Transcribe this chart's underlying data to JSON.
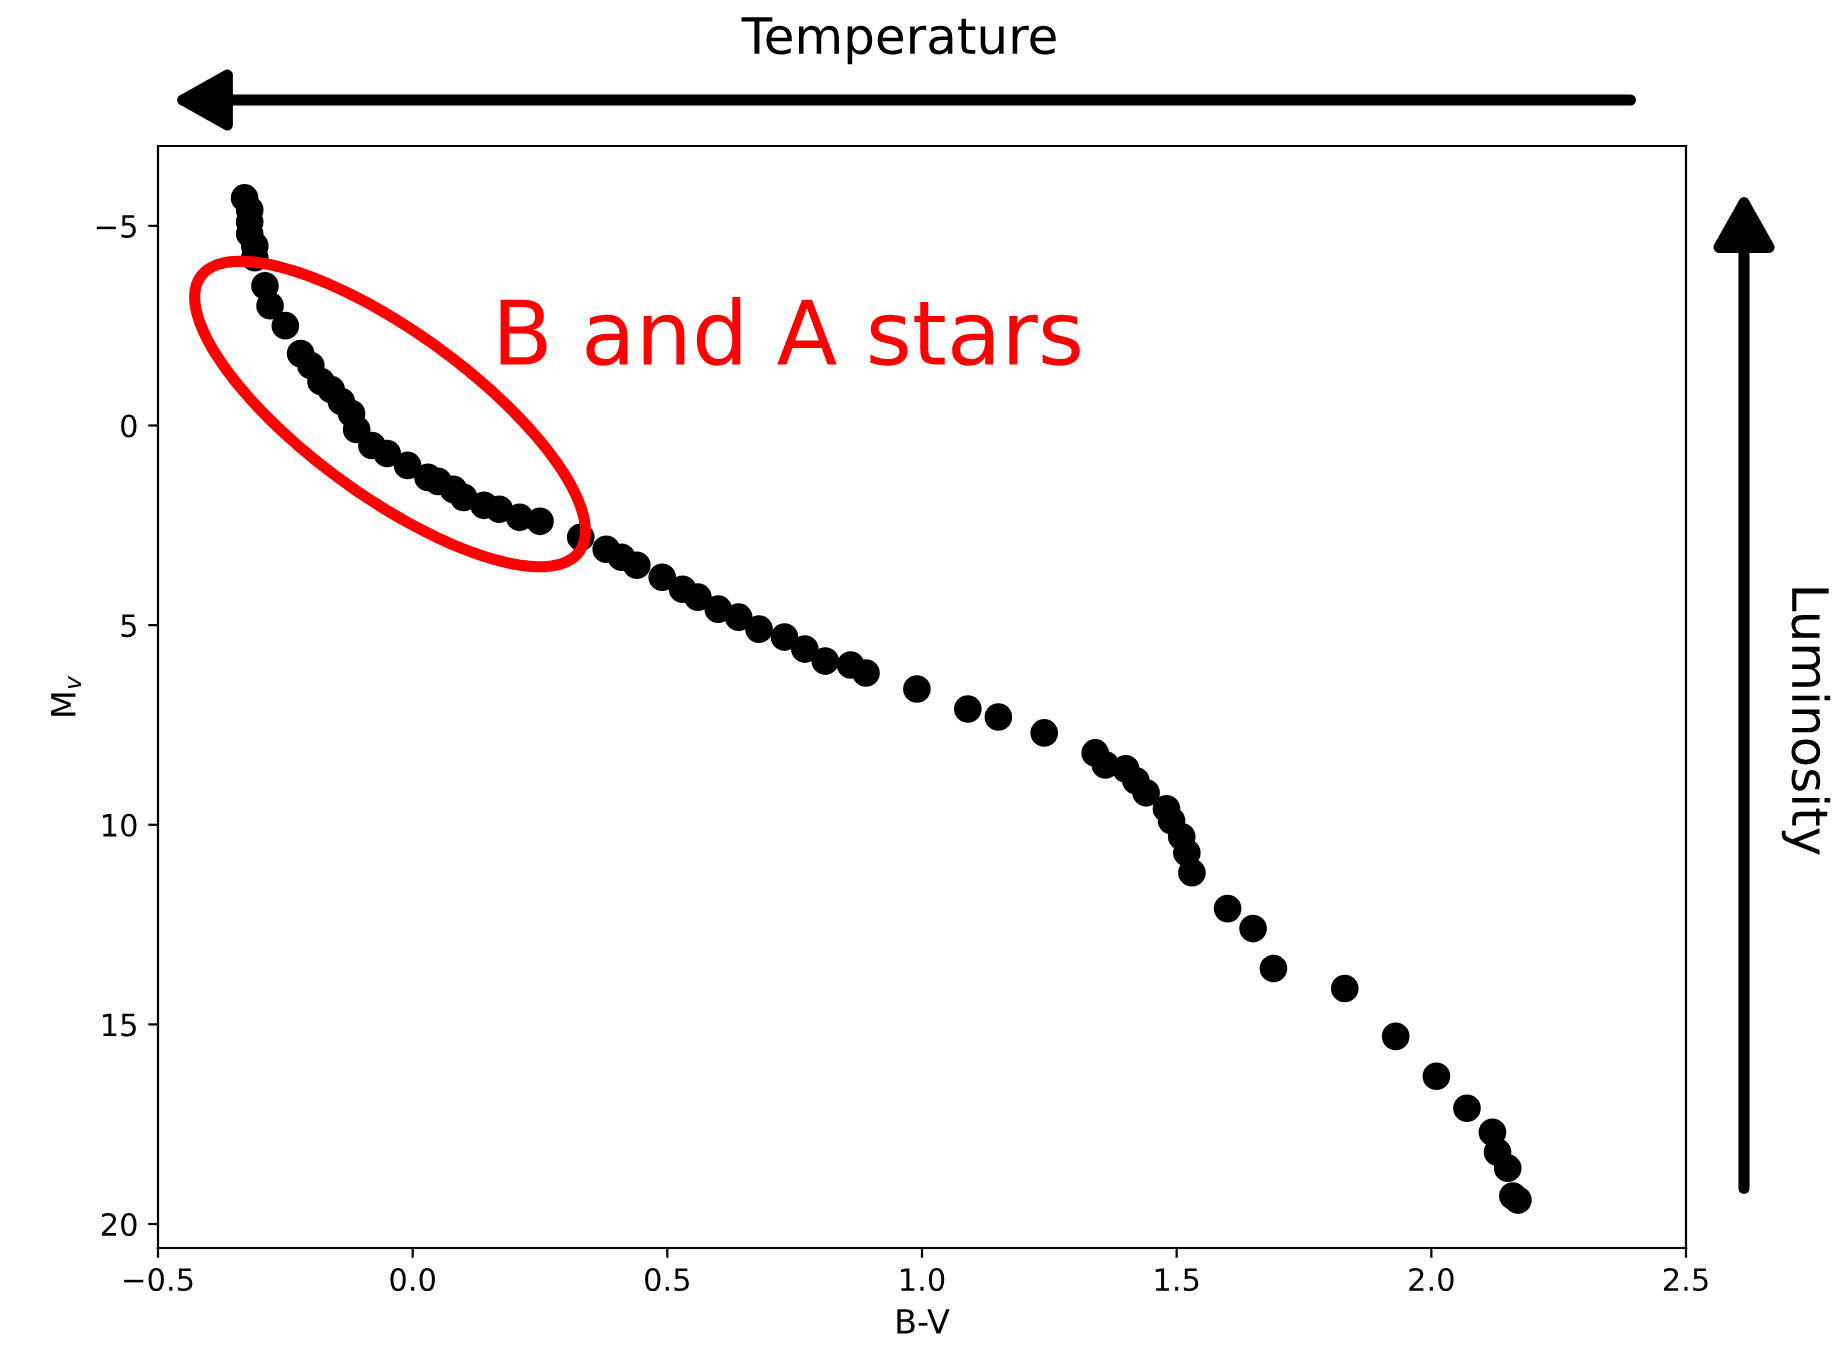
{
  "chart_data": {
    "type": "scatter",
    "xlabel": "B-V",
    "ylabel": "M$_{v}$",
    "annotations": [
      "Temperature",
      "Luminosity",
      "B and A stars"
    ],
    "x": [
      -0.33,
      -0.32,
      -0.32,
      -0.32,
      -0.31,
      -0.31,
      -0.29,
      -0.28,
      -0.25,
      -0.22,
      -0.2,
      -0.18,
      -0.16,
      -0.14,
      -0.12,
      -0.11,
      -0.08,
      -0.05,
      -0.01,
      0.03,
      0.05,
      0.08,
      0.1,
      0.14,
      0.17,
      0.21,
      0.25,
      0.33,
      0.38,
      0.41,
      0.44,
      0.49,
      0.53,
      0.56,
      0.6,
      0.64,
      0.68,
      0.73,
      0.77,
      0.81,
      0.86,
      0.89,
      0.99,
      1.09,
      1.15,
      1.24,
      1.34,
      1.36,
      1.4,
      1.42,
      1.44,
      1.48,
      1.49,
      1.51,
      1.52,
      1.53,
      1.6,
      1.65,
      1.69,
      1.83,
      1.93,
      2.01,
      2.07,
      2.12,
      2.13,
      2.15,
      2.16,
      2.17
    ],
    "series": [
      {
        "color": "#000000",
        "values": [
          -5.7,
          -5.4,
          -5.1,
          -4.8,
          -4.5,
          -4.2,
          -3.5,
          -3.0,
          -2.5,
          -1.8,
          -1.5,
          -1.1,
          -0.9,
          -0.6,
          -0.3,
          0.1,
          0.5,
          0.7,
          1.0,
          1.3,
          1.4,
          1.6,
          1.8,
          2.0,
          2.1,
          2.3,
          2.4,
          2.8,
          3.1,
          3.3,
          3.5,
          3.8,
          4.1,
          4.3,
          4.6,
          4.8,
          5.1,
          5.3,
          5.6,
          5.9,
          6.0,
          6.2,
          6.6,
          7.1,
          7.3,
          7.7,
          8.2,
          8.5,
          8.6,
          8.9,
          9.2,
          9.6,
          9.9,
          10.3,
          10.7,
          11.2,
          12.1,
          12.6,
          13.6,
          14.1,
          15.3,
          16.3,
          17.1,
          17.7,
          18.2,
          18.6,
          19.3,
          19.4
        ]
      }
    ],
    "marker": "circle",
    "xlim": [
      -0.5,
      2.5
    ],
    "xticks": [
      {
        "value": -0.5,
        "label": "−0.5"
      },
      {
        "value": 0.0,
        "label": "0.0"
      },
      {
        "value": 0.5,
        "label": "0.5"
      },
      {
        "value": 1.0,
        "label": "1.0"
      },
      {
        "value": 1.5,
        "label": "1.5"
      },
      {
        "value": 2.0,
        "label": "2.0"
      },
      {
        "value": 2.5,
        "label": "2.5"
      }
    ],
    "ylim": [
      20.6,
      -7.0
    ],
    "yticks": [
      {
        "value": -5,
        "label": "−5"
      },
      0,
      5,
      10,
      15,
      20
    ],
    "grid": false,
    "legend": false
  }
}
